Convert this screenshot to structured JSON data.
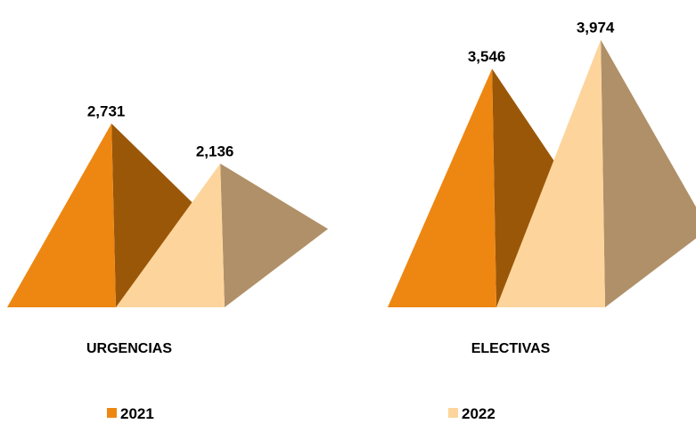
{
  "chart_data": {
    "type": "bar",
    "style": "3d-pyramid",
    "categories": [
      "URGENCIAS",
      "ELECTIVAS"
    ],
    "series": [
      {
        "name": "2021",
        "values": [
          2731,
          3546
        ],
        "labels": [
          "2,731",
          "3,546"
        ],
        "color": "#ED8712",
        "shade": "#9B5708"
      },
      {
        "name": "2022",
        "values": [
          2136,
          3974
        ],
        "labels": [
          "2,136",
          "3,974"
        ],
        "color": "#FDD59C",
        "shade": "#B09068"
      }
    ],
    "title": "",
    "xlabel": "",
    "ylabel": "",
    "ylim": [
      0,
      4500
    ],
    "grid": false,
    "legend": "bottom"
  }
}
